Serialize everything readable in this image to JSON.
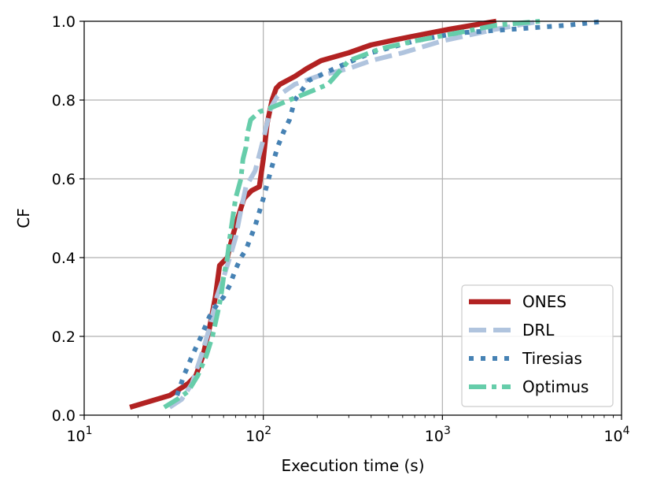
{
  "chart_data": {
    "type": "line",
    "xscale": "log",
    "xlabel": "Execution time (s)",
    "ylabel": "CF",
    "xlim": [
      10,
      10000
    ],
    "ylim": [
      0,
      1
    ],
    "grid": true,
    "legend_position": "bottom-right",
    "xticks": [
      {
        "value": 10,
        "base": "10",
        "exp": "1"
      },
      {
        "value": 100,
        "base": "10",
        "exp": "2"
      },
      {
        "value": 1000,
        "base": "10",
        "exp": "3"
      },
      {
        "value": 10000,
        "base": "10",
        "exp": "4"
      }
    ],
    "yticks": [
      {
        "value": 0.0,
        "label": "0.0"
      },
      {
        "value": 0.2,
        "label": "0.2"
      },
      {
        "value": 0.4,
        "label": "0.4"
      },
      {
        "value": 0.6,
        "label": "0.6"
      },
      {
        "value": 0.8,
        "label": "0.8"
      },
      {
        "value": 1.0,
        "label": "1.0"
      }
    ],
    "series": [
      {
        "name": "ONES",
        "color": "#b22222",
        "style": "solid",
        "x": [
          18,
          30,
          38,
          42,
          46,
          50,
          54,
          57,
          63,
          67,
          72,
          78,
          86,
          95,
          100,
          105,
          112,
          118,
          124,
          150,
          175,
          210,
          300,
          400,
          650,
          1100,
          2000
        ],
        "y": [
          0.02,
          0.05,
          0.08,
          0.1,
          0.15,
          0.22,
          0.3,
          0.38,
          0.4,
          0.45,
          0.5,
          0.55,
          0.57,
          0.58,
          0.65,
          0.74,
          0.8,
          0.83,
          0.84,
          0.86,
          0.88,
          0.9,
          0.92,
          0.94,
          0.96,
          0.98,
          1.0
        ]
      },
      {
        "name": "DRL",
        "color": "#b0c4de",
        "style": "dashed",
        "x": [
          30,
          35,
          40,
          45,
          50,
          55,
          60,
          65,
          70,
          75,
          80,
          90,
          100,
          110,
          120,
          150,
          200,
          300,
          400,
          600,
          1000,
          2000,
          3500
        ],
        "y": [
          0.02,
          0.04,
          0.08,
          0.15,
          0.22,
          0.3,
          0.35,
          0.4,
          0.45,
          0.52,
          0.58,
          0.62,
          0.7,
          0.78,
          0.81,
          0.84,
          0.86,
          0.88,
          0.9,
          0.92,
          0.95,
          0.98,
          1.0
        ]
      },
      {
        "name": "Tiresias",
        "color": "#4682b4",
        "style": "dotted",
        "x": [
          33,
          36,
          40,
          45,
          50,
          55,
          60,
          65,
          70,
          75,
          80,
          90,
          100,
          110,
          120,
          130,
          140,
          150,
          180,
          250,
          400,
          700,
          1200,
          2500,
          5000,
          8000
        ],
        "y": [
          0.05,
          0.1,
          0.15,
          0.2,
          0.25,
          0.28,
          0.3,
          0.33,
          0.37,
          0.4,
          0.42,
          0.48,
          0.55,
          0.62,
          0.68,
          0.72,
          0.75,
          0.8,
          0.85,
          0.88,
          0.92,
          0.95,
          0.97,
          0.98,
          0.99,
          1.0
        ]
      },
      {
        "name": "Optimus",
        "color": "#66cdaa",
        "style": "dashdot",
        "x": [
          28,
          33,
          38,
          43,
          48,
          52,
          55,
          58,
          60,
          63,
          65,
          70,
          75,
          77,
          80,
          82,
          85,
          90,
          95,
          110,
          140,
          180,
          230,
          300,
          450,
          700,
          1200,
          2000,
          3500
        ],
        "y": [
          0.02,
          0.04,
          0.06,
          0.1,
          0.15,
          0.2,
          0.25,
          0.3,
          0.35,
          0.4,
          0.45,
          0.55,
          0.6,
          0.65,
          0.68,
          0.72,
          0.75,
          0.76,
          0.77,
          0.78,
          0.8,
          0.82,
          0.84,
          0.9,
          0.93,
          0.95,
          0.97,
          0.99,
          1.0
        ]
      }
    ]
  }
}
